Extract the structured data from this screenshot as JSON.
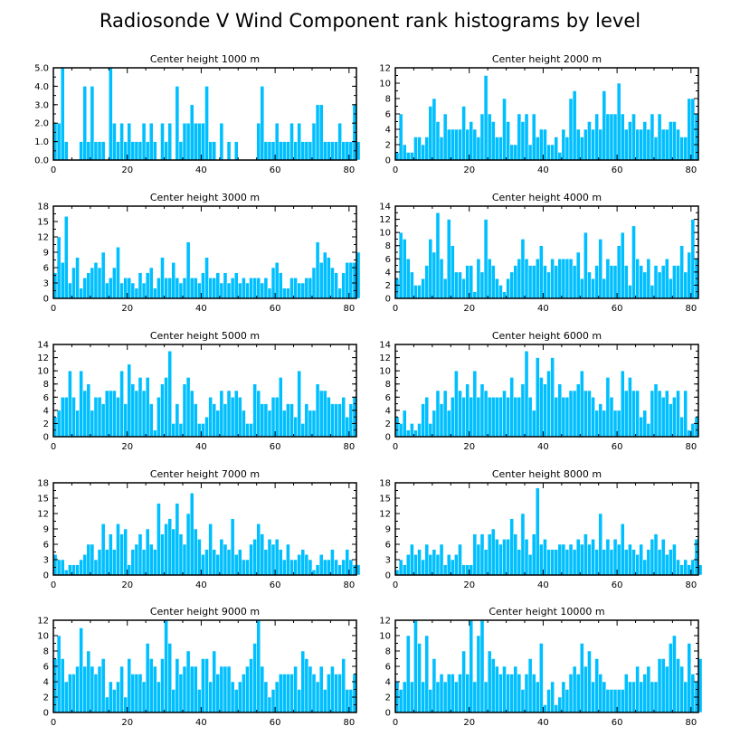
{
  "title": "Radiosonde V Wind Component rank histograms by level",
  "chart_data": [
    {
      "type": "bar",
      "title": "Center height 1000 m",
      "xlim": [
        0,
        82
      ],
      "ylim": [
        0,
        5
      ],
      "yticks": [
        0,
        1,
        2,
        3,
        4,
        5
      ],
      "ytick_labels": [
        "0.0",
        "1.0",
        "2.0",
        "3.0",
        "4.0",
        "5.0"
      ],
      "xticks": [
        0,
        20,
        40,
        60,
        80
      ],
      "values": [
        2,
        2,
        5,
        1,
        0,
        0,
        0,
        1,
        4,
        1,
        4,
        1,
        1,
        1,
        0,
        5,
        2,
        1,
        2,
        1,
        2,
        1,
        1,
        1,
        2,
        1,
        2,
        1,
        0,
        2,
        1,
        2,
        0,
        4,
        1,
        2,
        2,
        3,
        2,
        2,
        2,
        4,
        1,
        1,
        0,
        2,
        0,
        1,
        0,
        1,
        0,
        0,
        0,
        0,
        0,
        2,
        4,
        1,
        1,
        1,
        2,
        1,
        1,
        1,
        2,
        1,
        2,
        1,
        1,
        1,
        2,
        3,
        3,
        1,
        1,
        1,
        1,
        2,
        1,
        1,
        1,
        3,
        1
      ]
    },
    {
      "type": "bar",
      "title": "Center height 2000 m",
      "xlim": [
        0,
        82
      ],
      "ylim": [
        0,
        12
      ],
      "yticks": [
        0,
        2,
        4,
        6,
        8,
        10,
        12
      ],
      "ytick_labels": [
        "0",
        "2",
        "4",
        "6",
        "8",
        "10",
        "12"
      ],
      "xticks": [
        0,
        20,
        40,
        60,
        80
      ],
      "values": [
        1,
        6,
        2,
        1,
        1,
        3,
        3,
        2,
        3,
        7,
        8,
        5,
        3,
        6,
        4,
        4,
        4,
        4,
        7,
        4,
        5,
        4,
        3,
        6,
        11,
        6,
        5,
        3,
        3,
        8,
        5,
        2,
        2,
        6,
        5,
        6,
        2,
        6,
        3,
        4,
        4,
        2,
        2,
        3,
        1,
        4,
        3,
        8,
        9,
        4,
        3,
        4,
        5,
        4,
        6,
        4,
        9,
        6,
        6,
        6,
        10,
        6,
        4,
        5,
        6,
        4,
        4,
        5,
        4,
        6,
        3,
        6,
        4,
        4,
        5,
        5,
        4,
        3,
        3,
        8,
        8,
        6
      ]
    },
    {
      "type": "bar",
      "title": "Center height 3000 m",
      "xlim": [
        0,
        82
      ],
      "ylim": [
        0,
        18
      ],
      "yticks": [
        0,
        3,
        6,
        9,
        12,
        15,
        18
      ],
      "ytick_labels": [
        "0",
        "3",
        "6",
        "9",
        "12",
        "15",
        "18"
      ],
      "xticks": [
        0,
        20,
        40,
        60,
        80
      ],
      "values": [
        5,
        12,
        7,
        16,
        3,
        6,
        8,
        2,
        4,
        5,
        6,
        7,
        6,
        9,
        3,
        4,
        6,
        10,
        3,
        4,
        4,
        3,
        2,
        5,
        3,
        5,
        6,
        2,
        4,
        8,
        4,
        4,
        7,
        4,
        3,
        4,
        11,
        4,
        4,
        3,
        5,
        8,
        4,
        4,
        5,
        3,
        5,
        3,
        4,
        5,
        3,
        4,
        3,
        4,
        4,
        4,
        3,
        4,
        2,
        6,
        7,
        5,
        2,
        2,
        4,
        4,
        3,
        3,
        4,
        4,
        6,
        11,
        7,
        9,
        8,
        6,
        5,
        2,
        5,
        7,
        7,
        7,
        9
      ]
    },
    {
      "type": "bar",
      "title": "Center height 4000 m",
      "xlim": [
        0,
        82
      ],
      "ylim": [
        0,
        14
      ],
      "yticks": [
        0,
        2,
        4,
        6,
        8,
        10,
        12,
        14
      ],
      "ytick_labels": [
        "0",
        "2",
        "4",
        "6",
        "8",
        "10",
        "12",
        "14"
      ],
      "xticks": [
        0,
        20,
        40,
        60,
        80
      ],
      "values": [
        3,
        10,
        9,
        6,
        4,
        2,
        2,
        3,
        5,
        9,
        7,
        13,
        6,
        3,
        12,
        8,
        4,
        4,
        3,
        5,
        5,
        1,
        6,
        4,
        12,
        6,
        5,
        3,
        2,
        1,
        3,
        4,
        5,
        6,
        9,
        6,
        5,
        5,
        6,
        8,
        5,
        4,
        6,
        5,
        6,
        6,
        6,
        6,
        5,
        7,
        3,
        10,
        4,
        3,
        5,
        9,
        3,
        6,
        5,
        5,
        8,
        10,
        5,
        2,
        11,
        6,
        5,
        4,
        6,
        2,
        5,
        4,
        5,
        6,
        3,
        5,
        5,
        8,
        4,
        7,
        12,
        6
      ]
    },
    {
      "type": "bar",
      "title": "Center height 5000 m",
      "xlim": [
        0,
        82
      ],
      "ylim": [
        0,
        14
      ],
      "yticks": [
        0,
        2,
        4,
        6,
        8,
        10,
        12,
        14
      ],
      "ytick_labels": [
        "0",
        "2",
        "4",
        "6",
        "8",
        "10",
        "12",
        "14"
      ],
      "xticks": [
        0,
        20,
        40,
        60,
        80
      ],
      "values": [
        3,
        4,
        6,
        6,
        10,
        6,
        4,
        10,
        7,
        8,
        4,
        6,
        6,
        5,
        7,
        7,
        7,
        6,
        10,
        5,
        11,
        8,
        7,
        9,
        7,
        9,
        5,
        1,
        6,
        8,
        9,
        13,
        2,
        5,
        2,
        8,
        9,
        7,
        5,
        2,
        2,
        3,
        6,
        5,
        4,
        7,
        5,
        7,
        6,
        7,
        6,
        4,
        2,
        2,
        8,
        7,
        5,
        5,
        4,
        6,
        6,
        9,
        4,
        5,
        5,
        3,
        10,
        2,
        5,
        4,
        4,
        8,
        7,
        7,
        6,
        5,
        5,
        5,
        6,
        3,
        5,
        6
      ]
    },
    {
      "type": "bar",
      "title": "Center height 6000 m",
      "xlim": [
        0,
        82
      ],
      "ylim": [
        0,
        14
      ],
      "yticks": [
        0,
        2,
        4,
        6,
        8,
        10,
        12,
        14
      ],
      "ytick_labels": [
        "0",
        "2",
        "4",
        "6",
        "8",
        "10",
        "12",
        "14"
      ],
      "xticks": [
        0,
        20,
        40,
        60,
        80
      ],
      "values": [
        3,
        2,
        4,
        1,
        2,
        1,
        2,
        5,
        6,
        2,
        4,
        7,
        5,
        7,
        4,
        6,
        10,
        7,
        6,
        8,
        6,
        10,
        6,
        8,
        7,
        6,
        6,
        6,
        6,
        7,
        6,
        9,
        6,
        6,
        8,
        13,
        6,
        4,
        12,
        9,
        8,
        10,
        12,
        6,
        8,
        6,
        6,
        7,
        7,
        8,
        10,
        7,
        7,
        6,
        4,
        5,
        4,
        9,
        6,
        4,
        4,
        10,
        7,
        9,
        7,
        7,
        3,
        4,
        2,
        7,
        8,
        7,
        6,
        7,
        5,
        6,
        7,
        3,
        7,
        1,
        2,
        3
      ]
    },
    {
      "type": "bar",
      "title": "Center height 7000 m",
      "xlim": [
        0,
        82
      ],
      "ylim": [
        0,
        18
      ],
      "yticks": [
        0,
        3,
        6,
        9,
        12,
        15,
        18
      ],
      "ytick_labels": [
        "0",
        "3",
        "6",
        "9",
        "12",
        "15",
        "18"
      ],
      "xticks": [
        0,
        20,
        40,
        60,
        80
      ],
      "values": [
        4,
        3,
        3,
        1,
        2,
        2,
        2,
        3,
        4,
        6,
        6,
        3,
        5,
        10,
        5,
        8,
        5,
        10,
        8,
        9,
        2,
        5,
        6,
        8,
        5,
        9,
        6,
        5,
        14,
        8,
        10,
        11,
        9,
        14,
        8,
        6,
        12,
        16,
        9,
        7,
        4,
        5,
        10,
        5,
        4,
        7,
        6,
        5,
        11,
        4,
        5,
        3,
        3,
        6,
        7,
        10,
        8,
        5,
        7,
        6,
        7,
        5,
        3,
        6,
        3,
        3,
        4,
        5,
        4,
        3,
        1,
        2,
        4,
        3,
        3,
        5,
        3,
        2,
        3,
        5,
        3,
        2,
        2
      ]
    },
    {
      "type": "bar",
      "title": "Center height 8000 m",
      "xlim": [
        0,
        82
      ],
      "ylim": [
        0,
        18
      ],
      "yticks": [
        0,
        3,
        6,
        9,
        12,
        15,
        18
      ],
      "ytick_labels": [
        "0",
        "3",
        "6",
        "9",
        "12",
        "15",
        "18"
      ],
      "xticks": [
        0,
        20,
        40,
        60,
        80
      ],
      "values": [
        1,
        3,
        2,
        4,
        6,
        4,
        5,
        3,
        6,
        4,
        5,
        4,
        6,
        2,
        4,
        3,
        4,
        6,
        2,
        2,
        2,
        8,
        6,
        8,
        5,
        8,
        9,
        7,
        6,
        7,
        7,
        11,
        8,
        5,
        12,
        7,
        4,
        8,
        17,
        6,
        7,
        5,
        5,
        5,
        6,
        6,
        5,
        6,
        5,
        7,
        6,
        8,
        6,
        7,
        5,
        12,
        5,
        7,
        5,
        7,
        6,
        10,
        5,
        6,
        5,
        4,
        6,
        3,
        5,
        7,
        8,
        5,
        7,
        4,
        5,
        6,
        3,
        2,
        3,
        2,
        3,
        7,
        2
      ]
    },
    {
      "type": "bar",
      "title": "Center height 9000 m",
      "xlim": [
        0,
        82
      ],
      "ylim": [
        0,
        12
      ],
      "yticks": [
        0,
        2,
        4,
        6,
        8,
        10,
        12
      ],
      "ytick_labels": [
        "0",
        "2",
        "4",
        "6",
        "8",
        "10",
        "12"
      ],
      "xticks": [
        0,
        20,
        40,
        60,
        80
      ],
      "values": [
        7,
        10,
        7,
        4,
        5,
        5,
        6,
        11,
        6,
        8,
        6,
        5,
        6,
        7,
        2,
        4,
        3,
        4,
        6,
        2,
        7,
        5,
        5,
        5,
        4,
        9,
        7,
        6,
        4,
        7,
        12,
        9,
        3,
        7,
        5,
        6,
        8,
        6,
        6,
        3,
        7,
        7,
        4,
        8,
        5,
        6,
        6,
        6,
        4,
        3,
        4,
        5,
        6,
        7,
        9,
        12,
        6,
        4,
        2,
        3,
        4,
        5,
        5,
        5,
        5,
        6,
        3,
        8,
        7,
        6,
        5,
        4,
        6,
        3,
        5,
        6,
        5,
        5,
        7,
        3,
        3,
        5
      ]
    },
    {
      "type": "bar",
      "title": "Center height 10000 m",
      "xlim": [
        0,
        82
      ],
      "ylim": [
        0,
        12
      ],
      "yticks": [
        0,
        2,
        4,
        6,
        8,
        10,
        12
      ],
      "ytick_labels": [
        "0",
        "2",
        "4",
        "6",
        "8",
        "10",
        "12"
      ],
      "xticks": [
        0,
        20,
        40,
        60,
        80
      ],
      "values": [
        4,
        3,
        4,
        10,
        4,
        12,
        9,
        4,
        10,
        3,
        7,
        4,
        5,
        4,
        5,
        5,
        4,
        5,
        8,
        5,
        12,
        4,
        10,
        12,
        4,
        8,
        7,
        6,
        5,
        6,
        5,
        5,
        6,
        5,
        3,
        5,
        7,
        5,
        4,
        9,
        1,
        3,
        4,
        1,
        2,
        4,
        3,
        5,
        6,
        5,
        9,
        6,
        8,
        4,
        7,
        5,
        4,
        3,
        3,
        3,
        3,
        3,
        5,
        4,
        4,
        6,
        4,
        5,
        6,
        4,
        4,
        7,
        7,
        6,
        9,
        10,
        7,
        6,
        4,
        9,
        5,
        4,
        7
      ]
    }
  ]
}
